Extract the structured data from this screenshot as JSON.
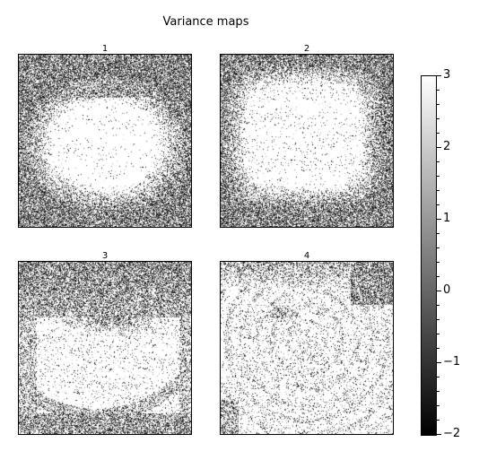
{
  "title": "Variance maps",
  "chart_data": {
    "type": "heatmap",
    "title": "Variance maps",
    "colormap": "gray",
    "panels": [
      {
        "label": "1",
        "description": "noisy border, bright smooth oval center"
      },
      {
        "label": "2",
        "description": "noisy border, bright rounded-square center with edge arcs"
      },
      {
        "label": "3",
        "description": "dark noisy upper half, bright lower center with curved streaks"
      },
      {
        "label": "4",
        "description": "mostly bright with concentric ring texture, dark noise at corners"
      }
    ],
    "colorbar": {
      "vmin": -2,
      "vmax": 3,
      "ticks": [
        3,
        2,
        1,
        0,
        -1,
        -2
      ],
      "tick_labels": [
        "3",
        "2",
        "1",
        "0",
        "−1",
        "−2"
      ],
      "minor_step": 0.2
    },
    "xlabel": "",
    "ylabel": "",
    "grid": false
  }
}
